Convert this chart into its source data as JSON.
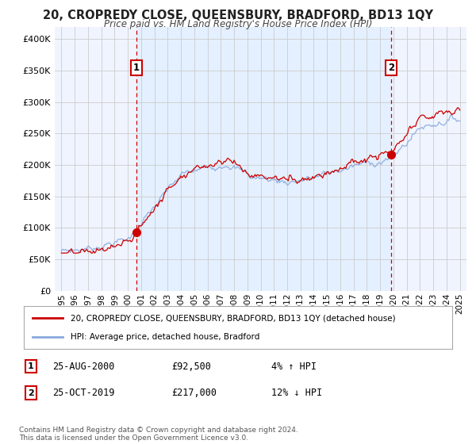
{
  "title": "20, CROPREDY CLOSE, QUEENSBURY, BRADFORD, BD13 1QY",
  "subtitle": "Price paid vs. HM Land Registry's House Price Index (HPI)",
  "legend_line1": "20, CROPREDY CLOSE, QUEENSBURY, BRADFORD, BD13 1QY (detached house)",
  "legend_line2": "HPI: Average price, detached house, Bradford",
  "footnote": "Contains HM Land Registry data © Crown copyright and database right 2024.\nThis data is licensed under the Open Government Licence v3.0.",
  "sale1_label": "1",
  "sale1_date": "25-AUG-2000",
  "sale1_price": "£92,500",
  "sale1_hpi": "4% ↑ HPI",
  "sale1_year": 2000.65,
  "sale1_value": 92500,
  "sale2_label": "2",
  "sale2_date": "25-OCT-2019",
  "sale2_price": "£217,000",
  "sale2_hpi": "12% ↓ HPI",
  "sale2_year": 2019.82,
  "sale2_value": 217000,
  "line_color_red": "#cc0000",
  "line_color_blue": "#88aadd",
  "shade_color": "#ddeeff",
  "dashed_color": "#cc0000",
  "marker_box_color": "#cc0000",
  "grid_color": "#cccccc",
  "bg_color": "#ffffff",
  "plot_bg_color": "#f0f4ff",
  "ylim": [
    0,
    420000
  ],
  "xlim_start": 1994.5,
  "xlim_end": 2025.5,
  "yticks": [
    0,
    50000,
    100000,
    150000,
    200000,
    250000,
    300000,
    350000,
    400000
  ],
  "ytick_labels": [
    "£0",
    "£50K",
    "£100K",
    "£150K",
    "£200K",
    "£250K",
    "£300K",
    "£350K",
    "£400K"
  ],
  "xticks": [
    1995,
    1996,
    1997,
    1998,
    1999,
    2000,
    2001,
    2002,
    2003,
    2004,
    2005,
    2006,
    2007,
    2008,
    2009,
    2010,
    2011,
    2012,
    2013,
    2014,
    2015,
    2016,
    2017,
    2018,
    2019,
    2020,
    2021,
    2022,
    2023,
    2024,
    2025
  ]
}
